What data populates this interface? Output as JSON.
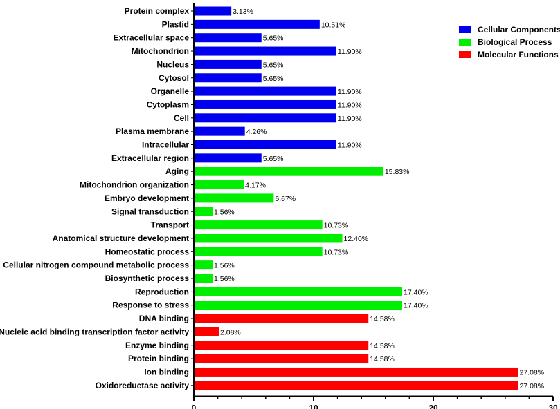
{
  "chart_data": {
    "type": "bar",
    "orientation": "horizontal",
    "title": "",
    "xlabel": "",
    "ylabel": "",
    "xlim": [
      0,
      30
    ],
    "xticks": [
      0,
      10,
      20,
      30
    ],
    "grid": false,
    "legend_position": "top-right",
    "groups": [
      {
        "name": "Cellular Components",
        "color": "#0000ee"
      },
      {
        "name": "Biological Process",
        "color": "#00ee00"
      },
      {
        "name": "Molecular Functions",
        "color": "#ff0000"
      }
    ],
    "bars": [
      {
        "category": "Protein complex",
        "value": 3.13,
        "label": "3.13%",
        "group": 0
      },
      {
        "category": "Plastid",
        "value": 10.51,
        "label": "10.51%",
        "group": 0
      },
      {
        "category": "Extracellular space",
        "value": 5.65,
        "label": "5.65%",
        "group": 0
      },
      {
        "category": "Mitochondrion",
        "value": 11.9,
        "label": "11.90%",
        "group": 0
      },
      {
        "category": "Nucleus",
        "value": 5.65,
        "label": "5.65%",
        "group": 0
      },
      {
        "category": "Cytosol",
        "value": 5.65,
        "label": "5.65%",
        "group": 0
      },
      {
        "category": "Organelle",
        "value": 11.9,
        "label": "11.90%",
        "group": 0
      },
      {
        "category": "Cytoplasm",
        "value": 11.9,
        "label": "11.90%",
        "group": 0
      },
      {
        "category": "Cell",
        "value": 11.9,
        "label": "11.90%",
        "group": 0
      },
      {
        "category": "Plasma membrane",
        "value": 4.26,
        "label": "4.26%",
        "group": 0
      },
      {
        "category": "Intracellular",
        "value": 11.9,
        "label": "11.90%",
        "group": 0
      },
      {
        "category": "Extracellular region",
        "value": 5.65,
        "label": "5.65%",
        "group": 0
      },
      {
        "category": "Aging",
        "value": 15.83,
        "label": "15.83%",
        "group": 1
      },
      {
        "category": "Mitochondrion organization",
        "value": 4.17,
        "label": "4.17%",
        "group": 1
      },
      {
        "category": "Embryo development",
        "value": 6.67,
        "label": "6.67%",
        "group": 1
      },
      {
        "category": "Signal transduction",
        "value": 1.56,
        "label": "1.56%",
        "group": 1
      },
      {
        "category": "Transport",
        "value": 10.73,
        "label": "10.73%",
        "group": 1
      },
      {
        "category": "Anatomical structure development",
        "value": 12.4,
        "label": "12.40%",
        "group": 1
      },
      {
        "category": "Homeostatic process",
        "value": 10.73,
        "label": "10.73%",
        "group": 1
      },
      {
        "category": "Cellular nitrogen compound metabolic process",
        "value": 1.56,
        "label": "1.56%",
        "group": 1
      },
      {
        "category": "Biosynthetic process",
        "value": 1.56,
        "label": "1.56%",
        "group": 1
      },
      {
        "category": "Reproduction",
        "value": 17.4,
        "label": "17.40%",
        "group": 1
      },
      {
        "category": "Response to stress",
        "value": 17.4,
        "label": "17.40%",
        "group": 1
      },
      {
        "category": "DNA binding",
        "value": 14.58,
        "label": "14.58%",
        "group": 2
      },
      {
        "category": "Nucleic acid binding transcription factor activity",
        "value": 2.08,
        "label": "2.08%",
        "group": 2
      },
      {
        "category": "Enzyme binding",
        "value": 14.58,
        "label": "14.58%",
        "group": 2
      },
      {
        "category": "Protein binding",
        "value": 14.58,
        "label": "14.58%",
        "group": 2
      },
      {
        "category": "Ion binding",
        "value": 27.08,
        "label": "27.08%",
        "group": 2
      },
      {
        "category": "Oxidoreductase activity",
        "value": 27.08,
        "label": "27.08%",
        "group": 2
      }
    ]
  }
}
